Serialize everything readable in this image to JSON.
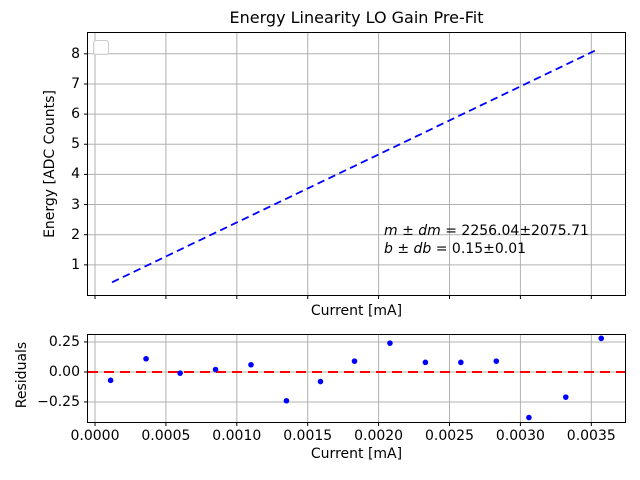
{
  "style": {
    "grid_color": "#b0b0b0",
    "spine_color": "#000000",
    "line_blue": "#0000ff",
    "refline_red": "#ff0000",
    "text_color": "#000000"
  },
  "chart_data": [
    {
      "type": "line",
      "title": "Energy Linearity LO Gain Pre-Fit",
      "xlabel": "Current [mA]",
      "ylabel": "Energy [ADC Counts]",
      "xlim": [
        -4.94e-05,
        0.0037376
      ],
      "ylim": [
        0.0,
        8.69
      ],
      "grid": true,
      "xticks": [
        0.0,
        0.0005,
        0.001,
        0.0015,
        0.002,
        0.0025,
        0.003,
        0.0035
      ],
      "xtick_labels": null,
      "yticks": [
        1,
        2,
        3,
        4,
        5,
        6,
        7,
        8
      ],
      "ytick_labels": [
        "1",
        "2",
        "3",
        "4",
        "5",
        "6",
        "7",
        "8"
      ],
      "legend": {
        "visible": true,
        "entries": []
      },
      "fit_line": {
        "color": "#0000ff",
        "style": "dashed",
        "m": 2256.04,
        "b": 0.15,
        "x_start": 0.00012,
        "x_end": 0.00355
      },
      "annotation": {
        "line1": {
          "math": "m ± dm",
          "text": " = 2256.04±2075.71"
        },
        "line2": {
          "math": "b ± db",
          "text": " = 0.15±0.01"
        }
      }
    },
    {
      "type": "scatter",
      "title": "",
      "xlabel": "Current [mA]",
      "ylabel": "Residuals",
      "xlim": [
        -4.94e-05,
        0.0037376
      ],
      "ylim": [
        -0.417,
        0.308
      ],
      "grid": true,
      "xticks": [
        0.0,
        0.0005,
        0.001,
        0.0015,
        0.002,
        0.0025,
        0.003,
        0.0035
      ],
      "xtick_labels": [
        "0.0000",
        "0.0005",
        "0.0010",
        "0.0015",
        "0.0020",
        "0.0025",
        "0.0030",
        "0.0035"
      ],
      "yticks": [
        0.25,
        0.0,
        -0.25
      ],
      "ytick_labels": [
        "0.25",
        "0.00",
        "−0.25"
      ],
      "points": {
        "color": "#0000ff",
        "x": [
          0.00011,
          0.00036,
          0.0006,
          0.00085,
          0.0011,
          0.00135,
          0.00159,
          0.00183,
          0.00208,
          0.00233,
          0.00258,
          0.00283,
          0.00306,
          0.00332,
          0.00357
        ],
        "y": [
          -0.07,
          0.11,
          -0.01,
          0.02,
          0.06,
          -0.24,
          -0.08,
          0.09,
          0.24,
          0.08,
          0.08,
          0.09,
          -0.38,
          -0.21,
          0.28
        ]
      },
      "refline": {
        "y": 0.0,
        "color": "#ff0000",
        "style": "dashed"
      }
    }
  ]
}
